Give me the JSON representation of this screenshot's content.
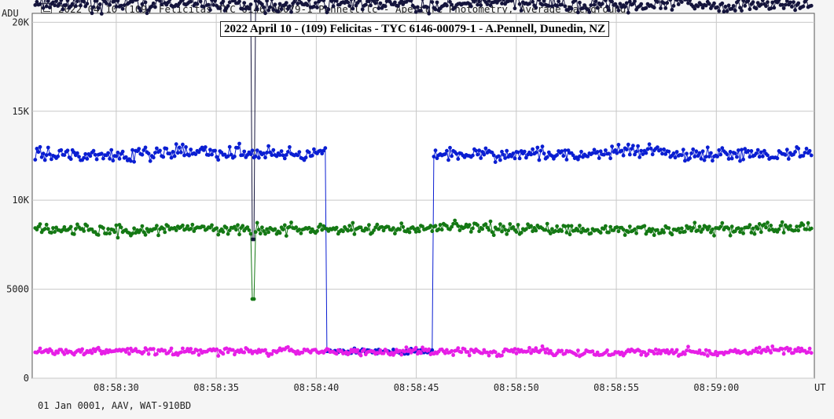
{
  "window": {
    "title": "2022 04 10 (109) Felicitas TYC 6146-00079-1 Pennell.lc - Aperture Photometry, Average Background",
    "icon": "chart-window-icon"
  },
  "footer_text": "01 Jan 0001, AAV, WAT-910BD",
  "chart_data": {
    "type": "line",
    "title": "2022 April 10 - (109) Felicitas - TYC 6146-00079-1 - A.Pennell, Dunedin, NZ",
    "yunit": "ADU",
    "xunit": "UT",
    "ylim": [
      0,
      20500
    ],
    "xlim_seconds": [
      25.8,
      64.9
    ],
    "xticks": [
      {
        "label": "08:58:30",
        "t": 30
      },
      {
        "label": "08:58:35",
        "t": 35
      },
      {
        "label": "08:58:40",
        "t": 40
      },
      {
        "label": "08:58:45",
        "t": 45
      },
      {
        "label": "08:58:50",
        "t": 50
      },
      {
        "label": "08:58:55",
        "t": 55
      },
      {
        "label": "08:59:00",
        "t": 60
      }
    ],
    "yticks": [
      {
        "label": "0",
        "v": 0
      },
      {
        "label": "5000",
        "v": 5000
      },
      {
        "label": "10K",
        "v": 10000
      },
      {
        "label": "15K",
        "v": 15000
      },
      {
        "label": "20K",
        "v": 20000
      }
    ],
    "grid": true,
    "legend": "none",
    "series": [
      {
        "color": "#14143c",
        "base": 21000,
        "noise": 700,
        "events": [
          {
            "start": 36.8,
            "end": 36.9,
            "value": 7800
          }
        ]
      },
      {
        "color": "#0a1ed2",
        "base": 12600,
        "noise": 650,
        "events": [
          {
            "start": 40.5,
            "end": 45.8,
            "value": 1500
          }
        ]
      },
      {
        "color": "#147814",
        "base": 8400,
        "noise": 550,
        "events": [
          {
            "start": 36.8,
            "end": 36.9,
            "value": 4450
          }
        ]
      },
      {
        "color": "#e61ee6",
        "base": 1500,
        "noise": 350,
        "events": []
      }
    ]
  }
}
